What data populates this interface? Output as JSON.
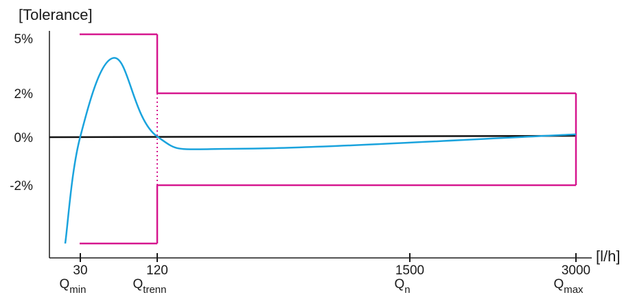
{
  "chart_data": {
    "type": "line",
    "ylabel": "[Tolerance]",
    "xlabel": "[l/h]",
    "y_ticks": [
      {
        "label": "5%",
        "value": 5
      },
      {
        "label": "2%",
        "value": 2
      },
      {
        "label": "0%",
        "value": 0
      },
      {
        "label": "-2%",
        "value": -2
      }
    ],
    "x_ticks": [
      {
        "label": "30",
        "q_base": "Q",
        "q_sub": "min"
      },
      {
        "label": "120",
        "q_base": "Q",
        "q_sub": "trenn"
      },
      {
        "label": "1500",
        "q_base": "Q",
        "q_sub": "n"
      },
      {
        "label": "3000",
        "q_base": "Q",
        "q_sub": "max"
      }
    ],
    "tolerance_limits": {
      "color": "#d6168e",
      "low_range": {
        "from": "Q_min",
        "to": "Q_trenn",
        "upper": 5,
        "lower": -5
      },
      "high_range": {
        "from": "Q_trenn",
        "to": "Q_max",
        "upper": 2,
        "lower": -2
      }
    },
    "reference_line": {
      "value": 0,
      "color": "#000000"
    },
    "error_curve": {
      "color": "#1aa3dd",
      "points": [
        {
          "x": 21,
          "y": -5.0
        },
        {
          "x": 30,
          "y": 0.0
        },
        {
          "x": 70,
          "y": 3.8
        },
        {
          "x": 120,
          "y": 0.0
        },
        {
          "x": 600,
          "y": -0.5
        },
        {
          "x": 3000,
          "y": 0.1
        }
      ]
    }
  }
}
